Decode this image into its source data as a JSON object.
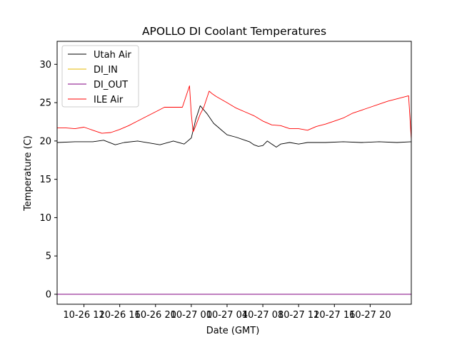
{
  "chart_data": {
    "type": "line",
    "title": "APOLLO DI Coolant Temperatures",
    "xlabel": "Date (GMT)",
    "ylabel": "Temperature (C)",
    "x_unit": "hours since 10-26 09:00 GMT",
    "xlim": [
      0,
      39.6
    ],
    "ylim": [
      -1.3,
      33
    ],
    "yticks": [
      0,
      5,
      10,
      15,
      20,
      25,
      30
    ],
    "ytick_labels": [
      "0",
      "5",
      "10",
      "15",
      "20",
      "25",
      "30"
    ],
    "xticks": [
      3,
      7,
      11,
      15,
      19,
      23,
      27,
      31,
      35
    ],
    "xtick_labels": [
      "10-26 12",
      "10-26 16",
      "10-26 20",
      "10-27 00",
      "10-27 04",
      "10-27 08",
      "10-27 12",
      "10-27 16",
      "10-27 20"
    ],
    "legend_position": "upper-left",
    "series": [
      {
        "name": "Utah Air",
        "color": "#000000",
        "x": [
          0,
          2,
          4,
          5.2,
          6.5,
          7.5,
          9,
          10.5,
          11.5,
          13,
          14.2,
          15,
          15.5,
          16,
          16.8,
          17.5,
          18,
          18.5,
          19,
          20,
          21,
          21.5,
          22,
          22.5,
          23,
          23.5,
          24,
          24.5,
          25,
          26,
          27,
          28,
          30,
          32,
          34,
          36,
          38,
          39.6
        ],
        "y": [
          19.8,
          19.9,
          19.9,
          20.1,
          19.5,
          19.8,
          20.0,
          19.7,
          19.5,
          20.0,
          19.6,
          20.4,
          22.8,
          24.6,
          23.5,
          22.3,
          21.8,
          21.3,
          20.8,
          20.5,
          20.1,
          19.9,
          19.5,
          19.3,
          19.4,
          20.0,
          19.6,
          19.2,
          19.6,
          19.8,
          19.6,
          19.8,
          19.8,
          19.9,
          19.8,
          19.9,
          19.8,
          19.9
        ]
      },
      {
        "name": "DI_IN",
        "color": "#e6b800",
        "x": [
          0,
          39.6
        ],
        "y": [
          0,
          0
        ]
      },
      {
        "name": "DI_OUT",
        "color": "#800080",
        "x": [
          0,
          39.6
        ],
        "y": [
          0,
          0
        ]
      },
      {
        "name": "ILE Air",
        "color": "#ff0000",
        "x": [
          0,
          1,
          2,
          3,
          4,
          5,
          6,
          7,
          8,
          9,
          10,
          11,
          12,
          14,
          14.8,
          15.0,
          15.2,
          15.3,
          15.6,
          16.0,
          16.4,
          17.0,
          17.3,
          17.8,
          19,
          20,
          21,
          22,
          23,
          24,
          25,
          26,
          27,
          28,
          29,
          30,
          31,
          32,
          33,
          34,
          35,
          36,
          37,
          38,
          39.3,
          39.6
        ],
        "y": [
          21.7,
          21.7,
          21.6,
          21.8,
          21.4,
          21.0,
          21.1,
          21.5,
          22.0,
          22.6,
          23.2,
          23.8,
          24.4,
          24.4,
          27.2,
          23.5,
          21.2,
          21.4,
          22.3,
          23.5,
          24.4,
          26.5,
          26.2,
          25.8,
          25.0,
          24.3,
          23.8,
          23.3,
          22.6,
          22.1,
          22.0,
          21.6,
          21.6,
          21.4,
          21.9,
          22.2,
          22.6,
          23.0,
          23.6,
          24.0,
          24.4,
          24.8,
          25.2,
          25.5,
          25.9,
          20.2
        ]
      }
    ]
  }
}
